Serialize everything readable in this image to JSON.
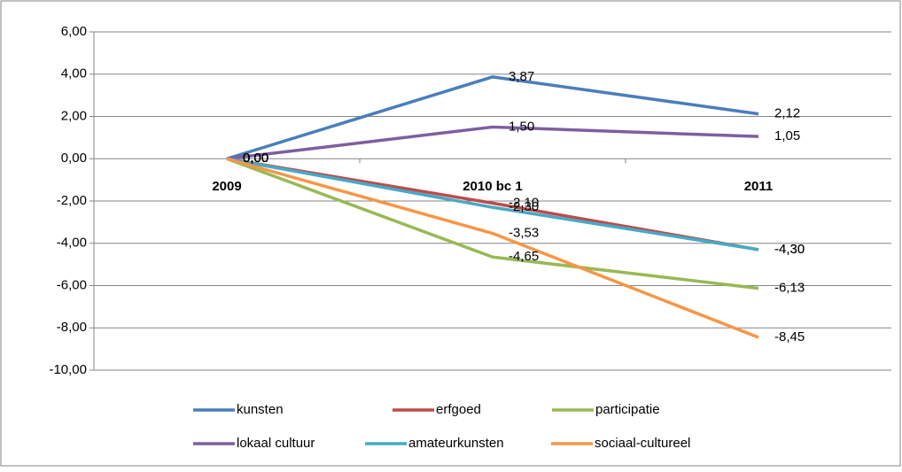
{
  "chart_data": {
    "type": "line",
    "categories": [
      "2009",
      "2010 bc 1",
      "2011"
    ],
    "series": [
      {
        "name": "kunsten",
        "color": "#4a7ebb",
        "values": [
          0,
          3.87,
          2.12
        ],
        "value_labels": [
          "0,00",
          "3,87",
          "2,12"
        ]
      },
      {
        "name": "erfgoed",
        "color": "#be4b48",
        "values": [
          0,
          -2.1,
          -4.3
        ],
        "value_labels": [
          "0,00",
          "-2,10",
          "-4,30"
        ]
      },
      {
        "name": "participatie",
        "color": "#98b954",
        "values": [
          0,
          -4.65,
          -6.13
        ],
        "value_labels": [
          "0,00",
          "-4,65",
          "-6,13"
        ]
      },
      {
        "name": "lokaal cultuur",
        "color": "#7d5fa0",
        "values": [
          0,
          1.5,
          1.05
        ],
        "value_labels": [
          "0,00",
          "1,50",
          "1,05"
        ]
      },
      {
        "name": "amateurkunsten",
        "color": "#46aac5",
        "values": [
          0,
          -2.3,
          -4.3
        ],
        "value_labels": [
          "0,00",
          "-2,30",
          "-4,30"
        ]
      },
      {
        "name": "sociaal-cultureel",
        "color": "#f79646",
        "values": [
          0,
          -3.53,
          -8.45
        ],
        "value_labels": [
          "0,00",
          "-3,53",
          "-8,45"
        ]
      }
    ],
    "ylim": [
      -10,
      6
    ],
    "yticks": [
      {
        "value": -10,
        "label": "-10,00"
      },
      {
        "value": -8,
        "label": "-8,00"
      },
      {
        "value": -6,
        "label": "-6,00"
      },
      {
        "value": -4,
        "label": "-4,00"
      },
      {
        "value": -2,
        "label": "-2,00"
      },
      {
        "value": 0,
        "label": "0,00"
      },
      {
        "value": 2,
        "label": "2,00"
      },
      {
        "value": 4,
        "label": "4,00"
      },
      {
        "value": 6,
        "label": "6,00"
      }
    ],
    "grid": true,
    "legend": "bottom"
  }
}
